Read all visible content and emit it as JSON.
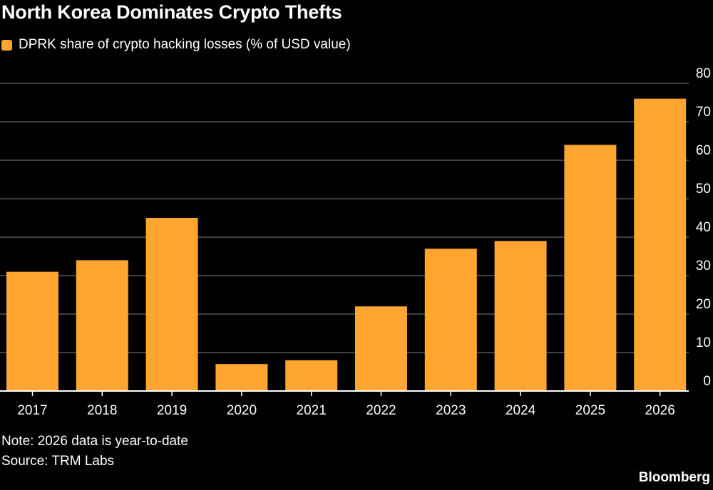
{
  "title": "North Korea Dominates Crypto Thefts",
  "legend_label": "DPRK share of crypto hacking losses (% of USD value)",
  "note": "Note: 2026 data is year-to-date",
  "source": "Source: TRM Labs",
  "brand": "Bloomberg",
  "colors": {
    "bar": "#ffa530",
    "background": "#000000",
    "grid": "#555555",
    "text": "#ffffff"
  },
  "chart_data": {
    "type": "bar",
    "categories": [
      "2017",
      "2018",
      "2019",
      "2020",
      "2021",
      "2022",
      "2023",
      "2024",
      "2025",
      "2026"
    ],
    "series": [
      {
        "name": "DPRK share of crypto hacking losses (% of USD value)",
        "values": [
          31,
          34,
          45,
          7,
          8,
          22,
          37,
          39,
          64,
          76
        ]
      }
    ],
    "ylim": [
      0,
      80
    ],
    "yticks": [
      "0",
      "10",
      "20",
      "30",
      "40",
      "50",
      "60",
      "70",
      "80"
    ],
    "y_axis_side": "right",
    "grid": true,
    "legend_position": "top-left"
  }
}
